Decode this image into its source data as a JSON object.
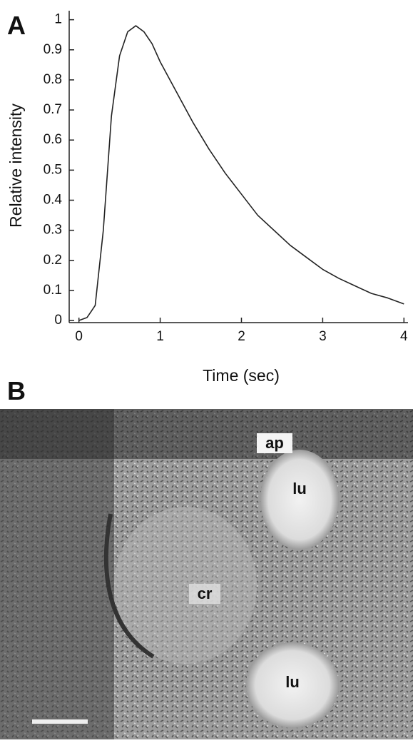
{
  "chart_data": {
    "type": "line",
    "x_label": "Time (sec)",
    "y_label": "Relative intensity",
    "x": [
      0,
      0.1,
      0.2,
      0.3,
      0.4,
      0.5,
      0.6,
      0.7,
      0.8,
      0.9,
      1.0,
      1.2,
      1.4,
      1.6,
      1.8,
      2.0,
      2.2,
      2.4,
      2.6,
      2.8,
      3.0,
      3.2,
      3.4,
      3.6,
      3.8,
      4.0
    ],
    "series": [
      {
        "color": "#222222",
        "values": [
          0,
          0.01,
          0.05,
          0.3,
          0.68,
          0.88,
          0.96,
          0.98,
          0.96,
          0.92,
          0.86,
          0.76,
          0.66,
          0.57,
          0.49,
          0.42,
          0.35,
          0.3,
          0.25,
          0.21,
          0.17,
          0.14,
          0.115,
          0.09,
          0.075,
          0.055
        ]
      }
    ],
    "xlim": [
      -0.12,
      4.05
    ],
    "ylim": [
      -0.007,
      1.03
    ],
    "xticks": [
      0,
      1,
      2,
      3,
      4
    ],
    "yticks": [
      0,
      0.1,
      0.2,
      0.3,
      0.4,
      0.5,
      0.6,
      0.7,
      0.8,
      0.9,
      1
    ]
  },
  "panel_a_label": "A",
  "panel_b_label": "B",
  "image_labels": [
    "ap",
    "lu",
    "cr",
    "lu"
  ]
}
